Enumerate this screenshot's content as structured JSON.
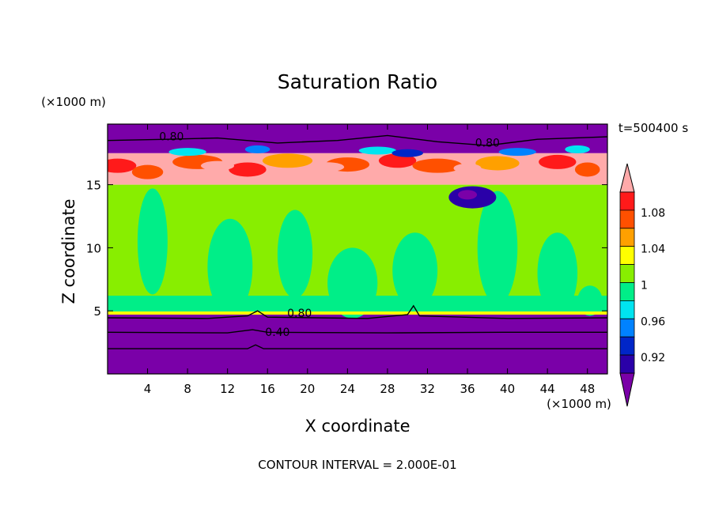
{
  "chart_data": {
    "type": "heatmap",
    "title": "Saturation Ratio",
    "xlabel": "X coordinate",
    "ylabel": "Z coordinate",
    "x_unit": "(×1000 m)",
    "y_unit": "(×1000 m)",
    "time_label": "t=500400 s",
    "footer": "CONTOUR INTERVAL = 2.000E-01",
    "xlim": [
      0,
      50
    ],
    "ylim": [
      0,
      19.8
    ],
    "xticks": [
      4,
      8,
      12,
      16,
      20,
      24,
      28,
      32,
      36,
      40,
      44,
      48
    ],
    "yticks": [
      5,
      10,
      15
    ],
    "contour_labels": [
      {
        "text": "0.80",
        "x": 6.4,
        "z": 18.5
      },
      {
        "text": "0.80",
        "x": 38.0,
        "z": 18.0
      },
      {
        "text": "0.80",
        "x": 19.2,
        "z": 4.5
      },
      {
        "text": "0.40",
        "x": 17.0,
        "z": 3.0
      }
    ],
    "colorbar": {
      "labels": [
        "1.08",
        "1.04",
        "1",
        "0.96",
        "0.92"
      ],
      "bin_edges": [
        0.9,
        0.92,
        0.94,
        0.96,
        0.98,
        1.0,
        1.02,
        1.04,
        1.06,
        1.08,
        1.1
      ],
      "colors": [
        "#7a00a8",
        "#2a00a8",
        "#0026c8",
        "#0082ff",
        "#00e4f0",
        "#00ee88",
        "#88ee00",
        "#ffff00",
        "#ffa000",
        "#ff5000",
        "#ff1a1a",
        "#ffaaaa"
      ]
    },
    "regions": [
      {
        "z_range": [
          0,
          4.7
        ],
        "value": "<0.90"
      },
      {
        "z_range": [
          4.7,
          15.0
        ],
        "value": "0.98-1.02"
      },
      {
        "z_range": [
          15.0,
          17.5
        ],
        "value": ">1.06"
      },
      {
        "z_range": [
          17.5,
          19.8
        ],
        "value": "<0.90"
      }
    ]
  }
}
